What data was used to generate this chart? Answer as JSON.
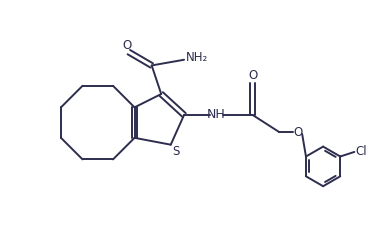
{
  "background_color": "#ffffff",
  "line_color": "#2d2d4e",
  "nh_color": "#2d2d4e",
  "line_width": 1.4,
  "font_size": 8.5,
  "xlim": [
    0,
    10
  ],
  "ylim": [
    0,
    6.5
  ]
}
